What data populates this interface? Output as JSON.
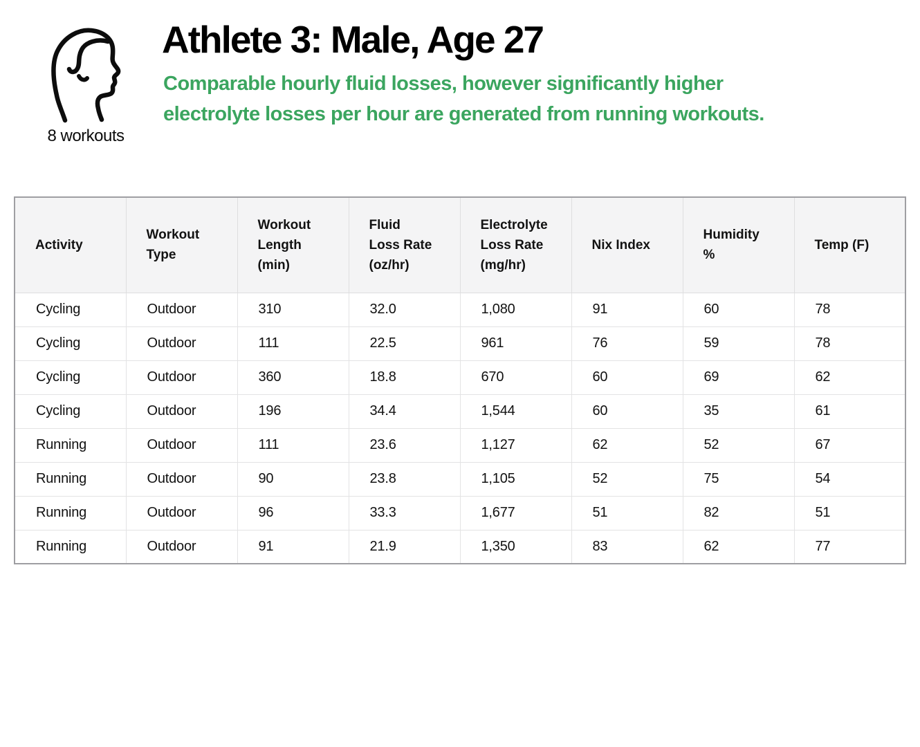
{
  "header": {
    "icon": "male-profile-icon",
    "workouts_label": "8 workouts",
    "title": "Athlete 3: Male, Age 27",
    "subtitle": "Comparable hourly fluid losses, however significantly higher\nelectrolyte losses per hour are generated from running workouts.",
    "accent_color": "#3BA55F"
  },
  "table": {
    "columns": [
      "Activity",
      "Workout\nType",
      "Workout\nLength\n(min)",
      "Fluid\nLoss Rate\n(oz/hr)",
      "Electrolyte\nLoss Rate\n(mg/hr)",
      "Nix Index",
      "Humidity\n%",
      "Temp (F)"
    ],
    "rows": [
      [
        "Cycling",
        "Outdoor",
        "310",
        "32.0",
        "1,080",
        "91",
        "60",
        "78"
      ],
      [
        "Cycling",
        "Outdoor",
        "111",
        "22.5",
        "961",
        "76",
        "59",
        "78"
      ],
      [
        "Cycling",
        "Outdoor",
        "360",
        "18.8",
        "670",
        "60",
        "69",
        "62"
      ],
      [
        "Cycling",
        "Outdoor",
        "196",
        "34.4",
        "1,544",
        "60",
        "35",
        "61"
      ],
      [
        "Running",
        "Outdoor",
        "111",
        "23.6",
        "1,127",
        "62",
        "52",
        "67"
      ],
      [
        "Running",
        "Outdoor",
        "90",
        "23.8",
        "1,105",
        "52",
        "75",
        "54"
      ],
      [
        "Running",
        "Outdoor",
        "96",
        "33.3",
        "1,677",
        "51",
        "82",
        "51"
      ],
      [
        "Running",
        "Outdoor",
        "91",
        "21.9",
        "1,350",
        "83",
        "62",
        "77"
      ]
    ]
  },
  "chart_data": {
    "type": "table",
    "title": "Athlete 3: Male, Age 27",
    "subtitle": "Comparable hourly fluid losses, however significantly higher electrolyte losses per hour are generated from running workouts.",
    "workout_count_label": "8 workouts",
    "columns": [
      "Activity",
      "Workout Type",
      "Workout Length (min)",
      "Fluid Loss Rate (oz/hr)",
      "Electrolyte Loss Rate (mg/hr)",
      "Nix Index",
      "Humidity %",
      "Temp (F)"
    ],
    "rows": [
      {
        "activity": "Cycling",
        "workout_type": "Outdoor",
        "workout_length_min": 310,
        "fluid_loss_rate_oz_hr": 32.0,
        "electrolyte_loss_rate_mg_hr": 1080,
        "nix_index": 91,
        "humidity_pct": 60,
        "temp_f": 78
      },
      {
        "activity": "Cycling",
        "workout_type": "Outdoor",
        "workout_length_min": 111,
        "fluid_loss_rate_oz_hr": 22.5,
        "electrolyte_loss_rate_mg_hr": 961,
        "nix_index": 76,
        "humidity_pct": 59,
        "temp_f": 78
      },
      {
        "activity": "Cycling",
        "workout_type": "Outdoor",
        "workout_length_min": 360,
        "fluid_loss_rate_oz_hr": 18.8,
        "electrolyte_loss_rate_mg_hr": 670,
        "nix_index": 60,
        "humidity_pct": 69,
        "temp_f": 62
      },
      {
        "activity": "Cycling",
        "workout_type": "Outdoor",
        "workout_length_min": 196,
        "fluid_loss_rate_oz_hr": 34.4,
        "electrolyte_loss_rate_mg_hr": 1544,
        "nix_index": 60,
        "humidity_pct": 35,
        "temp_f": 61
      },
      {
        "activity": "Running",
        "workout_type": "Outdoor",
        "workout_length_min": 111,
        "fluid_loss_rate_oz_hr": 23.6,
        "electrolyte_loss_rate_mg_hr": 1127,
        "nix_index": 62,
        "humidity_pct": 52,
        "temp_f": 67
      },
      {
        "activity": "Running",
        "workout_type": "Outdoor",
        "workout_length_min": 90,
        "fluid_loss_rate_oz_hr": 23.8,
        "electrolyte_loss_rate_mg_hr": 1105,
        "nix_index": 52,
        "humidity_pct": 75,
        "temp_f": 54
      },
      {
        "activity": "Running",
        "workout_type": "Outdoor",
        "workout_length_min": 96,
        "fluid_loss_rate_oz_hr": 33.3,
        "electrolyte_loss_rate_mg_hr": 1677,
        "nix_index": 51,
        "humidity_pct": 82,
        "temp_f": 51
      },
      {
        "activity": "Running",
        "workout_type": "Outdoor",
        "workout_length_min": 91,
        "fluid_loss_rate_oz_hr": 21.9,
        "electrolyte_loss_rate_mg_hr": 1350,
        "nix_index": 83,
        "humidity_pct": 62,
        "temp_f": 77
      }
    ]
  }
}
